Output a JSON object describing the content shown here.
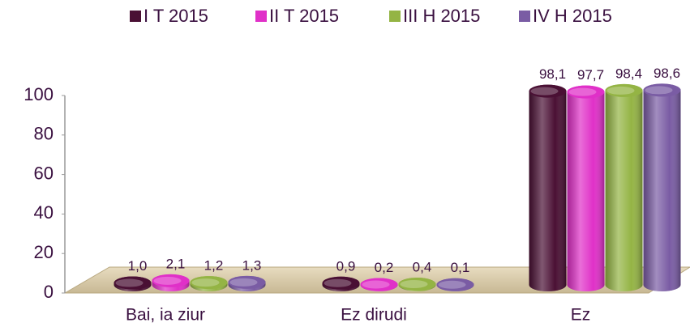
{
  "chart_data": {
    "type": "bar",
    "categories": [
      "Bai, ia ziur",
      "Ez dirudi",
      "Ez"
    ],
    "series": [
      {
        "name": "I T 2015",
        "color": "#4a1034",
        "values": [
          1.0,
          0.9,
          98.1
        ],
        "value_labels": [
          "1,0",
          "0,9",
          "98,1"
        ]
      },
      {
        "name": "II T 2015",
        "color": "#e030c8",
        "values": [
          2.1,
          0.2,
          97.7
        ],
        "value_labels": [
          "2,1",
          "0,2",
          "97,7"
        ]
      },
      {
        "name": "III H 2015",
        "color": "#94b444",
        "values": [
          1.2,
          0.4,
          98.4
        ],
        "value_labels": [
          "1,2",
          "0,4",
          "98,4"
        ]
      },
      {
        "name": "IV H 2015",
        "color": "#7a5ca4",
        "values": [
          1.3,
          0.1,
          98.6
        ],
        "value_labels": [
          "1,3",
          "0,1",
          "98,6"
        ]
      }
    ],
    "ylim": [
      0,
      100
    ],
    "yticks": [
      0,
      20,
      40,
      60,
      80,
      100
    ]
  }
}
